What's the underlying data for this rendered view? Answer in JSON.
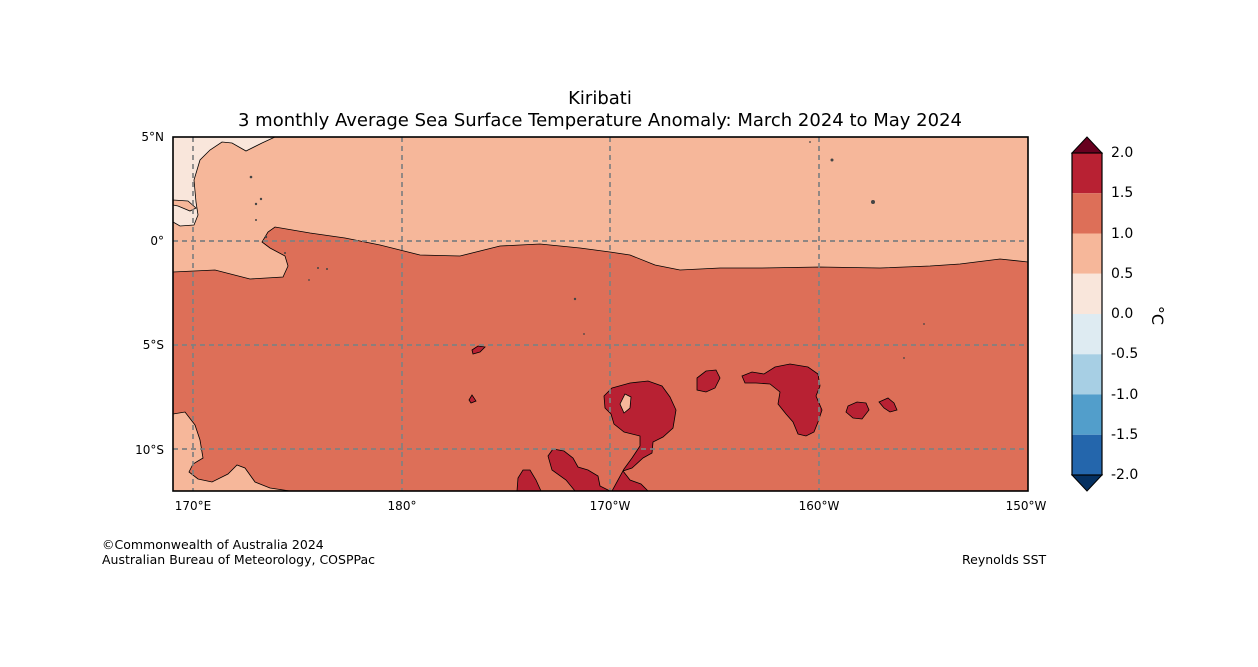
{
  "map": {
    "title": "Kiribati",
    "subtitle": "3 monthly Average Sea Surface Temperature Anomaly: March 2024 to May 2024",
    "lat_labels": [
      "5°N",
      "0°",
      "5°S",
      "10°S"
    ],
    "lon_labels": [
      "170°E",
      "180°",
      "170°W",
      "160°W",
      "150°W"
    ]
  },
  "legend": {
    "unit": "°C",
    "ticks": [
      "2.0",
      "1.5",
      "1.0",
      "0.5",
      "0.0",
      "-0.5",
      "-1.0",
      "-1.5",
      "-2.0"
    ],
    "colors": {
      "above_2": "#67001f",
      "1.5_2.0": "#b82133",
      "1.0_1.5": "#dd6f58",
      "0.5_1.0": "#f6b79a",
      "0.0_0.5": "#f9e6db",
      "-0.5_0.0": "#deebf2",
      "-1.0_-0.5": "#a7cfe4",
      "-1.5_-1.0": "#529ecb",
      "-2.0_-1.5": "#2466ac",
      "below_-2": "#053061"
    }
  },
  "footer": {
    "copyright": "©Commonwealth of Australia 2024",
    "agency": "Australian Bureau of Meteorology, COSPPac",
    "source": "Reynolds SST"
  }
}
